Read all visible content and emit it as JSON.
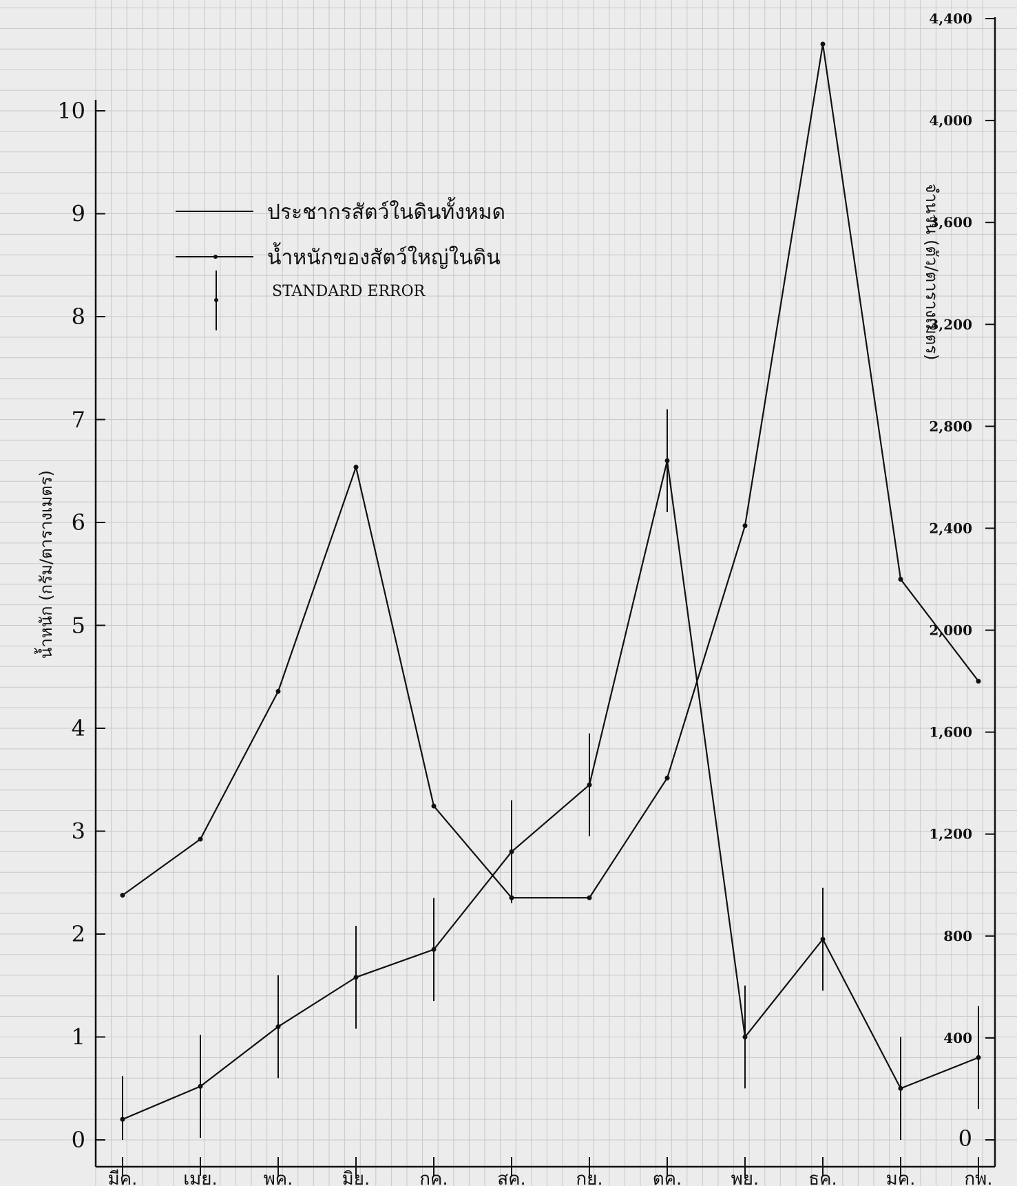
{
  "chart_data": {
    "type": "line",
    "categories": [
      "มีค.",
      "เมย.",
      "พค.",
      "มิย.",
      "กค.",
      "สค.",
      "กย.",
      "ตค.",
      "พย.",
      "ธค.",
      "มค.",
      "กพ."
    ],
    "left_axis": {
      "label": "น้ำหนัก (กรัม/ตารางเมตร)",
      "ylim": [
        0,
        10
      ],
      "ticks": [
        "0",
        "1",
        "2",
        "3",
        "4",
        "5",
        "6",
        "7",
        "8",
        "9",
        "10"
      ]
    },
    "right_axis": {
      "label": "จำนวน (ตัว/ตารางเมตร)",
      "ylim": [
        0,
        4400
      ],
      "ticks": [
        "0",
        "400",
        "800",
        "1,200",
        "1,600",
        "2,000",
        "2,400",
        "2,800",
        "3,200",
        "3,600",
        "4,000",
        "4,400"
      ]
    },
    "series": [
      {
        "name": "ประชากรสัตว์ในดินทั้งหมด",
        "axis": "right",
        "values": [
          960,
          1180,
          1760,
          2640,
          1310,
          950,
          950,
          1420,
          2410,
          4300,
          2200,
          1800
        ]
      },
      {
        "name": "น้ำหนักของสัตว์ใหญ่ในดิน",
        "axis": "left",
        "values": [
          0.2,
          0.52,
          1.1,
          1.58,
          1.85,
          2.8,
          3.45,
          6.6,
          1.0,
          1.95,
          0.5,
          0.8
        ],
        "error": [
          0.42,
          0.5,
          0.5,
          0.5,
          0.5,
          0.5,
          0.5,
          0.5,
          0.5,
          0.5,
          0.5,
          0.5
        ]
      }
    ],
    "legend": {
      "position": "top-left",
      "entries": [
        "ประชากรสัตว์ในดินทั้งหมด",
        "น้ำหนักของสัตว์ใหญ่ในดิน",
        "STANDARD ERROR"
      ]
    },
    "grid": true
  }
}
